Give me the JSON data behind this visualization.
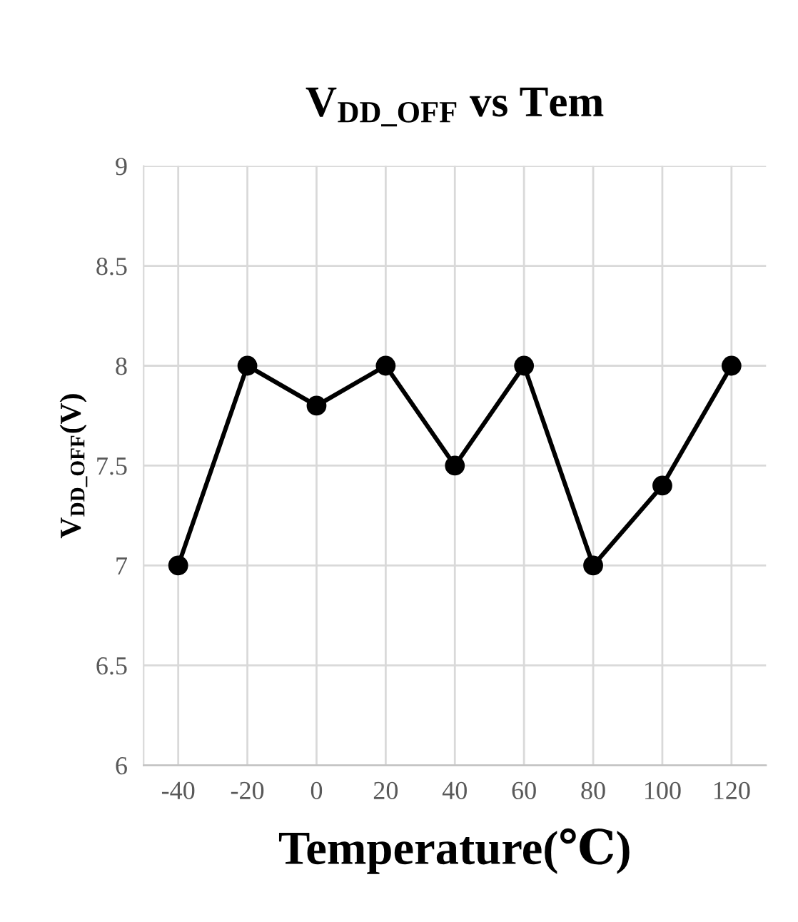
{
  "chart_data": {
    "type": "line",
    "title": "V$_{DD_OFF}$ vs Tem",
    "xlabel": "Temperature(℃)",
    "ylabel": "V$_{DD_OFF}$(V)",
    "categories": [
      "-40",
      "-20",
      "0",
      "20",
      "40",
      "60",
      "80",
      "100",
      "120"
    ],
    "series": [
      {
        "color": "#000000",
        "values": [
          7,
          8,
          7.8,
          8,
          7.5,
          8,
          7,
          7.4,
          8
        ]
      }
    ],
    "ylim": [
      6,
      9
    ],
    "yticks": [
      6,
      6.5,
      7,
      7.5,
      8,
      8.5,
      9
    ],
    "grid": true,
    "marker": "circle",
    "line_style": "solid"
  }
}
